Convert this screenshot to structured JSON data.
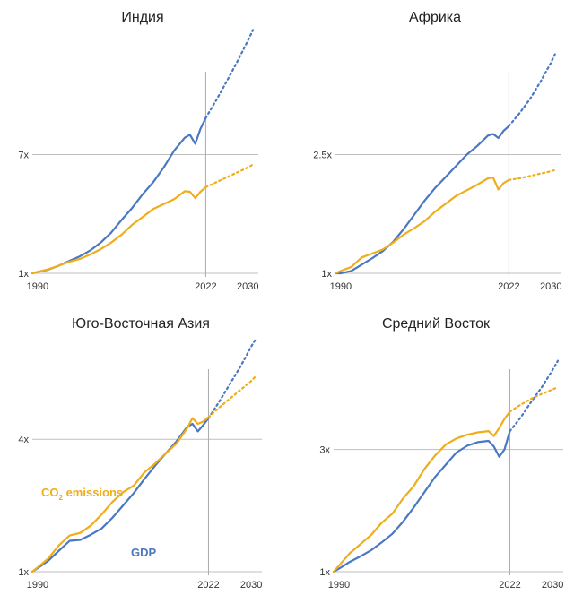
{
  "colors": {
    "gdp": "#4a78c2",
    "co2": "#f0ad1b",
    "grid": "#bfbfbf",
    "marker": "#aaaaaa"
  },
  "legend": {
    "co2_main": "CO",
    "co2_sub": "2",
    "co2_rest": " emissions",
    "gdp": "GDP"
  },
  "chart_data": [
    {
      "type": "line",
      "title": "Индия",
      "x_ticks": [
        "1990",
        "2022",
        "2030"
      ],
      "y_ticks": [
        {
          "value": 1,
          "label": "1x"
        },
        {
          "value": 7,
          "label": "7x"
        }
      ],
      "ylim": [
        1,
        13
      ],
      "xlim": [
        1989,
        2032
      ],
      "marker_x": 2022,
      "series": [
        {
          "key": "gdp",
          "x": [
            1989,
            1990,
            1992,
            1994,
            1996,
            1998,
            2000,
            2002,
            2004,
            2006,
            2008,
            2010,
            2012,
            2014,
            2016,
            2018,
            2019,
            2020,
            2021,
            2022
          ],
          "y": [
            1,
            1.07,
            1.18,
            1.38,
            1.62,
            1.85,
            2.15,
            2.55,
            3.05,
            3.7,
            4.3,
            5.0,
            5.6,
            6.35,
            7.2,
            7.85,
            8.0,
            7.55,
            8.3,
            8.85
          ],
          "proj_x": [
            2022,
            2024,
            2026,
            2028,
            2030,
            2031
          ],
          "proj_y": [
            8.85,
            9.75,
            10.7,
            11.7,
            12.75,
            13.3
          ]
        },
        {
          "key": "co2",
          "x": [
            1989,
            1990,
            1992,
            1994,
            1996,
            1998,
            2000,
            2002,
            2004,
            2006,
            2008,
            2010,
            2012,
            2014,
            2016,
            2018,
            2019,
            2020,
            2021,
            2022
          ],
          "y": [
            1,
            1.07,
            1.2,
            1.38,
            1.58,
            1.72,
            1.95,
            2.22,
            2.55,
            2.95,
            3.45,
            3.85,
            4.25,
            4.5,
            4.75,
            5.15,
            5.12,
            4.8,
            5.12,
            5.35
          ],
          "proj_x": [
            2022,
            2024,
            2026,
            2028,
            2030,
            2031
          ],
          "proj_y": [
            5.35,
            5.6,
            5.85,
            6.1,
            6.35,
            6.5
          ]
        }
      ]
    },
    {
      "type": "line",
      "title": "Африка",
      "x_ticks": [
        "1990",
        "2022",
        "2030"
      ],
      "y_ticks": [
        {
          "value": 1,
          "label": "1x"
        },
        {
          "value": 2.5,
          "label": "2.5x"
        }
      ],
      "ylim": [
        1,
        4
      ],
      "xlim": [
        1989,
        2032
      ],
      "marker_x": 2022,
      "series": [
        {
          "key": "gdp",
          "x": [
            1989,
            1990,
            1992,
            1994,
            1996,
            1998,
            2000,
            2002,
            2004,
            2006,
            2008,
            2010,
            2012,
            2014,
            2016,
            2018,
            2019,
            2020,
            2021,
            2022
          ],
          "y": [
            1,
            1.0,
            1.03,
            1.11,
            1.19,
            1.28,
            1.4,
            1.56,
            1.74,
            1.92,
            2.08,
            2.22,
            2.36,
            2.5,
            2.61,
            2.74,
            2.76,
            2.71,
            2.8,
            2.86
          ],
          "proj_x": [
            2022,
            2024,
            2026,
            2028,
            2030,
            2031
          ],
          "proj_y": [
            2.86,
            3.02,
            3.2,
            3.42,
            3.66,
            3.8
          ]
        },
        {
          "key": "co2",
          "x": [
            1989,
            1990,
            1992,
            1994,
            1996,
            1998,
            2000,
            2002,
            2004,
            2006,
            2008,
            2010,
            2012,
            2014,
            2016,
            2018,
            2019,
            2020,
            2021,
            2022
          ],
          "y": [
            1,
            1.03,
            1.08,
            1.2,
            1.25,
            1.3,
            1.39,
            1.49,
            1.57,
            1.66,
            1.78,
            1.88,
            1.98,
            2.05,
            2.12,
            2.2,
            2.21,
            2.06,
            2.14,
            2.18
          ],
          "proj_x": [
            2022,
            2024,
            2026,
            2028,
            2030,
            2031
          ],
          "proj_y": [
            2.18,
            2.2,
            2.23,
            2.26,
            2.29,
            2.31
          ]
        }
      ]
    },
    {
      "type": "line",
      "title": "Юго-Восточная Азия",
      "x_ticks": [
        "1990",
        "2022",
        "2030"
      ],
      "y_ticks": [
        {
          "value": 1,
          "label": "1x"
        },
        {
          "value": 4,
          "label": "4x"
        }
      ],
      "ylim": [
        1,
        6.4
      ],
      "xlim": [
        1989,
        2032
      ],
      "marker_x": 2022,
      "series": [
        {
          "key": "gdp",
          "x": [
            1989,
            1990,
            1992,
            1994,
            1996,
            1998,
            2000,
            2002,
            2004,
            2006,
            2008,
            2010,
            2012,
            2014,
            2016,
            2018,
            2019,
            2020,
            2021,
            2022
          ],
          "y": [
            1,
            1.08,
            1.25,
            1.48,
            1.7,
            1.72,
            1.84,
            1.98,
            2.22,
            2.5,
            2.78,
            3.1,
            3.4,
            3.68,
            3.95,
            4.28,
            4.35,
            4.18,
            4.32,
            4.48
          ],
          "proj_x": [
            2022,
            2024,
            2026,
            2028,
            2030,
            2031
          ],
          "proj_y": [
            4.48,
            4.85,
            5.25,
            5.65,
            6.1,
            6.3
          ]
        },
        {
          "key": "co2",
          "x": [
            1989,
            1990,
            1992,
            1994,
            1996,
            1998,
            2000,
            2002,
            2004,
            2006,
            2008,
            2010,
            2012,
            2014,
            2016,
            2018,
            2019,
            2020,
            2021,
            2022
          ],
          "y": [
            1,
            1.1,
            1.3,
            1.6,
            1.82,
            1.88,
            2.05,
            2.3,
            2.58,
            2.8,
            2.95,
            3.25,
            3.45,
            3.68,
            3.9,
            4.25,
            4.48,
            4.35,
            4.4,
            4.5
          ],
          "proj_x": [
            2022,
            2024,
            2026,
            2028,
            2030,
            2031
          ],
          "proj_y": [
            4.5,
            4.72,
            4.92,
            5.12,
            5.32,
            5.45
          ]
        }
      ]
    },
    {
      "type": "line",
      "title": "Средний Восток",
      "x_ticks": [
        "1990",
        "2022",
        "2030"
      ],
      "y_ticks": [
        {
          "value": 1,
          "label": "1x"
        },
        {
          "value": 3,
          "label": "3x"
        }
      ],
      "ylim": [
        1,
        4.9
      ],
      "xlim": [
        1989,
        2032
      ],
      "marker_x": 2022,
      "series": [
        {
          "key": "gdp",
          "x": [
            1989,
            1990,
            1992,
            1994,
            1996,
            1998,
            2000,
            2002,
            2004,
            2006,
            2008,
            2010,
            2012,
            2014,
            2016,
            2018,
            2019,
            2020,
            2021,
            2022
          ],
          "y": [
            1,
            1.05,
            1.16,
            1.25,
            1.35,
            1.48,
            1.62,
            1.82,
            2.05,
            2.3,
            2.55,
            2.75,
            2.95,
            3.06,
            3.12,
            3.14,
            3.05,
            2.88,
            3.0,
            3.3
          ],
          "proj_x": [
            2022,
            2024,
            2026,
            2028,
            2030,
            2031
          ],
          "proj_y": [
            3.3,
            3.52,
            3.78,
            4.02,
            4.3,
            4.45
          ]
        },
        {
          "key": "co2",
          "x": [
            1989,
            1990,
            1992,
            1994,
            1996,
            1998,
            2000,
            2002,
            2004,
            2006,
            2008,
            2010,
            2012,
            2014,
            2016,
            2018,
            2019,
            2020,
            2021,
            2022
          ],
          "y": [
            1,
            1.1,
            1.3,
            1.45,
            1.6,
            1.8,
            1.95,
            2.2,
            2.4,
            2.68,
            2.9,
            3.08,
            3.18,
            3.24,
            3.28,
            3.3,
            3.22,
            3.35,
            3.5,
            3.62
          ],
          "proj_x": [
            2022,
            2024,
            2026,
            2028,
            2030,
            2031
          ],
          "proj_y": [
            3.62,
            3.73,
            3.83,
            3.91,
            3.98,
            4.02
          ]
        }
      ]
    }
  ]
}
